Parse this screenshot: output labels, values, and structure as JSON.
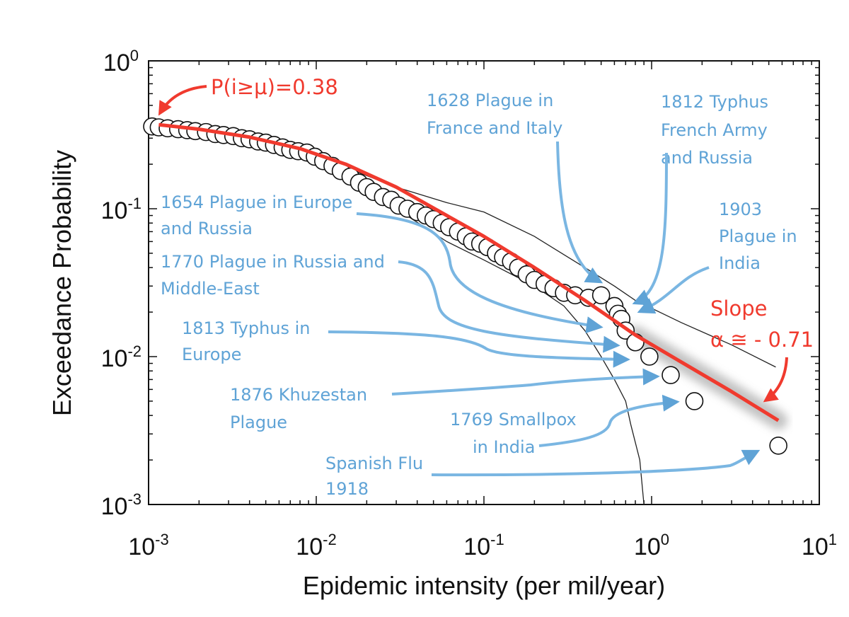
{
  "chart_data": {
    "type": "scatter",
    "title": "",
    "xlabel": "Epidemic intensity (per mil/year)",
    "ylabel": "Exceedance Probability",
    "xscale": "log",
    "yscale": "log",
    "xlim": [
      0.001,
      10
    ],
    "ylim": [
      0.001,
      1
    ],
    "x_tick_labels": [
      {
        "base": "10",
        "exp": "-3"
      },
      {
        "base": "10",
        "exp": "-2"
      },
      {
        "base": "10",
        "exp": "-1"
      },
      {
        "base": "10",
        "exp": "0"
      },
      {
        "base": "10",
        "exp": "1"
      }
    ],
    "y_tick_labels": [
      {
        "base": "10",
        "exp": "0"
      },
      {
        "base": "10",
        "exp": "-1"
      },
      {
        "base": "10",
        "exp": "-2"
      },
      {
        "base": "10",
        "exp": "-3"
      }
    ],
    "grid": false,
    "series": [
      {
        "marker": "open-circle",
        "x": [
          0.00105,
          0.00115,
          0.0013,
          0.0015,
          0.0017,
          0.0019,
          0.0022,
          0.0025,
          0.0028,
          0.0032,
          0.0036,
          0.004,
          0.0045,
          0.005,
          0.0056,
          0.0063,
          0.007,
          0.0078,
          0.0088,
          0.0098,
          0.011,
          0.0125,
          0.014,
          0.016,
          0.018,
          0.02,
          0.022,
          0.025,
          0.028,
          0.031,
          0.035,
          0.04,
          0.045,
          0.05,
          0.056,
          0.062,
          0.07,
          0.078,
          0.085,
          0.095,
          0.105,
          0.118,
          0.13,
          0.145,
          0.16,
          0.18,
          0.2,
          0.23,
          0.26,
          0.3,
          0.35,
          0.42,
          0.5,
          0.6,
          0.63,
          0.66,
          0.7,
          0.8,
          0.97,
          1.3,
          1.8,
          5.7
        ],
        "y": [
          0.36,
          0.355,
          0.35,
          0.345,
          0.34,
          0.335,
          0.33,
          0.32,
          0.315,
          0.31,
          0.3,
          0.295,
          0.285,
          0.28,
          0.27,
          0.26,
          0.25,
          0.245,
          0.24,
          0.225,
          0.21,
          0.195,
          0.18,
          0.165,
          0.15,
          0.14,
          0.13,
          0.12,
          0.115,
          0.105,
          0.1,
          0.095,
          0.09,
          0.085,
          0.08,
          0.075,
          0.07,
          0.065,
          0.06,
          0.058,
          0.055,
          0.05,
          0.047,
          0.044,
          0.04,
          0.036,
          0.033,
          0.031,
          0.029,
          0.027,
          0.026,
          0.025,
          0.026,
          0.022,
          0.0195,
          0.018,
          0.015,
          0.0125,
          0.01,
          0.0075,
          0.005,
          0.0025
        ]
      },
      {
        "style": "thin-line",
        "color": "#222222",
        "x": [
          0.0012,
          0.002,
          0.004,
          0.008,
          0.015,
          0.03,
          0.06,
          0.1,
          0.2,
          0.4,
          0.6,
          0.8,
          1.5,
          3,
          5.5
        ],
        "y": [
          0.37,
          0.35,
          0.31,
          0.26,
          0.19,
          0.14,
          0.11,
          0.095,
          0.065,
          0.04,
          0.03,
          0.024,
          0.017,
          0.012,
          0.0085
        ]
      },
      {
        "style": "thin-line",
        "color": "#222222",
        "x": [
          0.0012,
          0.002,
          0.004,
          0.008,
          0.015,
          0.03,
          0.06,
          0.1,
          0.2,
          0.3,
          0.4,
          0.5,
          0.6,
          0.7,
          0.75,
          0.85,
          0.9
        ],
        "y": [
          0.35,
          0.33,
          0.28,
          0.22,
          0.16,
          0.1,
          0.06,
          0.045,
          0.03,
          0.022,
          0.015,
          0.01,
          0.007,
          0.005,
          0.0035,
          0.002,
          0.001
        ]
      },
      {
        "style": "fit-line",
        "color": "#f03a2e",
        "x": [
          0.00115,
          0.002,
          0.004,
          0.008,
          0.015,
          0.03,
          0.06,
          0.1,
          0.2,
          0.4,
          0.8,
          1.5,
          3,
          5.7
        ],
        "y": [
          0.37,
          0.345,
          0.305,
          0.255,
          0.2,
          0.14,
          0.09,
          0.065,
          0.04,
          0.024,
          0.014,
          0.0092,
          0.0058,
          0.0037
        ]
      }
    ],
    "annotations": {
      "p_label": "P(i≥μ)=0.38",
      "slope_label": "Slope",
      "alpha_label": "α ≅ - 0.71",
      "events": [
        {
          "lines": [
            "1628 Plague in",
            "France and Italy"
          ]
        },
        {
          "lines": [
            "1812 Typhus",
            "French Army",
            "and Russia"
          ]
        },
        {
          "lines": [
            "1654 Plague in Europe",
            "and Russia"
          ]
        },
        {
          "lines": [
            "1903",
            "Plague in",
            "India"
          ]
        },
        {
          "lines": [
            "1770 Plague in Russia and",
            "Middle-East"
          ]
        },
        {
          "lines": [
            "1813 Typhus in",
            "Europe"
          ]
        },
        {
          "lines": [
            "1876 Khuzestan",
            "Plague"
          ]
        },
        {
          "lines": [
            "1769 Smallpox",
            "in India"
          ]
        },
        {
          "lines": [
            "Spanish Flu",
            "1918"
          ]
        }
      ]
    },
    "colors": {
      "annotation_blue": "#5fa3d6",
      "annotation_red": "#f03a2e",
      "axis": "#111111"
    }
  }
}
